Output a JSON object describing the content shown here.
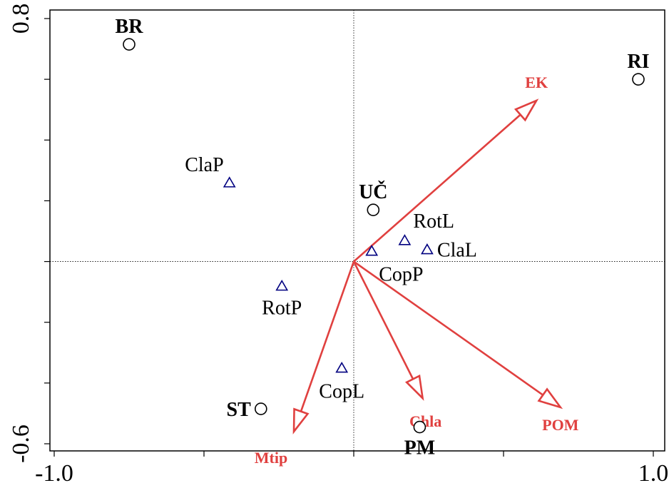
{
  "chart_data": {
    "type": "scatter",
    "title": "",
    "xlabel": "",
    "ylabel": "",
    "xlim": [
      -1.0,
      1.0
    ],
    "ylim": [
      -0.6,
      0.8
    ],
    "x_tick_labels": [
      "-1.0",
      "1.0"
    ],
    "y_tick_labels": [
      "0.8",
      "-0.6"
    ],
    "x_ticks": [
      -1.0,
      -0.5,
      0.0,
      0.5,
      1.0
    ],
    "y_ticks": [
      0.8,
      0.6,
      0.4,
      0.2,
      0.0,
      -0.2,
      -0.4,
      -0.6
    ],
    "grid": false,
    "sites": [
      {
        "label": "BR",
        "x": -0.75,
        "y": 0.715
      },
      {
        "label": "RI",
        "x": 0.95,
        "y": 0.6
      },
      {
        "label": "UČ",
        "x": 0.065,
        "y": 0.17
      },
      {
        "label": "ST",
        "x": -0.31,
        "y": -0.485
      },
      {
        "label": "PM",
        "x": 0.22,
        "y": -0.545
      }
    ],
    "species": [
      {
        "label": "ClaP",
        "x": -0.415,
        "y": 0.26
      },
      {
        "label": "RotL",
        "x": 0.17,
        "y": 0.07
      },
      {
        "label": "ClaL",
        "x": 0.245,
        "y": 0.04
      },
      {
        "label": "CopP",
        "x": 0.06,
        "y": 0.035
      },
      {
        "label": "RotP",
        "x": -0.24,
        "y": -0.08
      },
      {
        "label": "CopL",
        "x": -0.04,
        "y": -0.35
      }
    ],
    "environmental_vectors": [
      {
        "label": "EK",
        "x": 0.61,
        "y": 0.53
      },
      {
        "label": "POM",
        "x": 0.69,
        "y": -0.48
      },
      {
        "label": "Chla",
        "x": 0.23,
        "y": -0.45
      },
      {
        "label": "Mtip",
        "x": -0.2,
        "y": -0.56
      }
    ]
  }
}
